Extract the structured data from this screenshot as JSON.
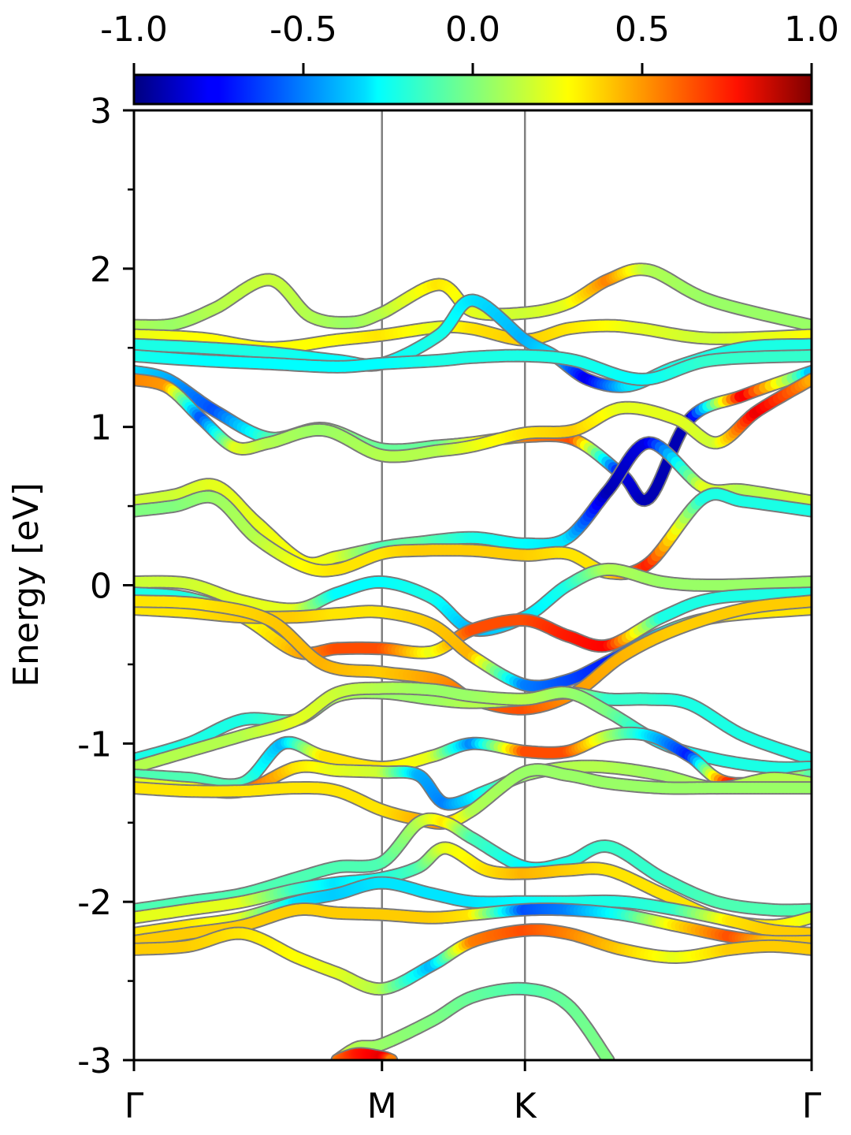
{
  "chart_data": {
    "type": "line",
    "xlabel": "",
    "ylabel": "Energy [eV]",
    "ylim": [
      -3,
      3
    ],
    "yticks": [
      {
        "value": 3,
        "label": "3"
      },
      {
        "value": 2,
        "label": "2"
      },
      {
        "value": 1,
        "label": "1"
      },
      {
        "value": 0,
        "label": "0"
      },
      {
        "value": -1,
        "label": "-1"
      },
      {
        "value": -2,
        "label": "-2"
      },
      {
        "value": -3,
        "label": "-3"
      }
    ],
    "yminor": [
      2.5,
      1.5,
      0.5,
      -0.5,
      -1.5,
      -2.5
    ],
    "xlim": [
      0,
      1
    ],
    "kpoints": [
      {
        "label": "Γ",
        "x": 0.0
      },
      {
        "label": "M",
        "x": 0.366
      },
      {
        "label": "K",
        "x": 0.577
      },
      {
        "label": "Γ",
        "x": 1.0
      }
    ],
    "colorbar": {
      "colormap": "jet",
      "range": [
        -1.0,
        1.0
      ],
      "ticks": [
        "-1.0",
        "-0.5",
        "0.0",
        "0.5",
        "1.0"
      ],
      "orientation": "horizontal",
      "position": "top"
    },
    "series": [
      {
        "x": [
          0,
          0.06,
          0.12,
          0.2,
          0.26,
          0.32,
          0.366,
          0.45,
          0.5,
          0.577,
          0.64,
          0.7,
          0.76,
          0.85,
          1.0
        ],
        "y": [
          1.64,
          1.65,
          1.75,
          1.93,
          1.7,
          1.66,
          1.72,
          1.9,
          1.73,
          1.72,
          1.78,
          1.93,
          1.99,
          1.8,
          1.64
        ],
        "s": [
          0.1,
          0.05,
          0.1,
          0.15,
          0.1,
          0.05,
          0.1,
          0.3,
          0.2,
          0.15,
          0.2,
          0.5,
          0.1,
          0.05,
          0.05
        ]
      },
      {
        "x": [
          0,
          0.1,
          0.2,
          0.3,
          0.366,
          0.45,
          0.5,
          0.577,
          0.64,
          0.7,
          0.75,
          0.85,
          1.0
        ],
        "y": [
          1.58,
          1.56,
          1.5,
          1.55,
          1.58,
          1.63,
          1.62,
          1.55,
          1.62,
          1.64,
          1.62,
          1.56,
          1.58
        ],
        "s": [
          0.2,
          0.25,
          0.25,
          0.25,
          0.3,
          0.2,
          0.3,
          0.35,
          0.3,
          0.25,
          0.2,
          0.15,
          0.25
        ]
      },
      {
        "x": [
          0,
          0.1,
          0.2,
          0.3,
          0.366,
          0.45,
          0.5,
          0.577,
          0.62,
          0.67,
          0.73,
          0.8,
          0.9,
          1.0
        ],
        "y": [
          1.52,
          1.5,
          1.47,
          1.42,
          1.4,
          1.58,
          1.8,
          1.55,
          1.45,
          1.3,
          1.26,
          1.38,
          1.5,
          1.52
        ],
        "s": [
          -0.2,
          -0.2,
          -0.2,
          -0.25,
          -0.25,
          -0.2,
          -0.3,
          -0.4,
          -0.3,
          -0.8,
          -0.3,
          -0.2,
          -0.2,
          -0.2
        ]
      },
      {
        "x": [
          0,
          0.1,
          0.2,
          0.3,
          0.366,
          0.45,
          0.5,
          0.577,
          0.65,
          0.75,
          0.85,
          1.0
        ],
        "y": [
          1.45,
          1.42,
          1.4,
          1.38,
          1.4,
          1.42,
          1.44,
          1.45,
          1.42,
          1.3,
          1.42,
          1.45
        ],
        "s": [
          -0.2,
          -0.25,
          -0.25,
          -0.25,
          -0.25,
          -0.2,
          -0.2,
          -0.2,
          -0.2,
          -0.25,
          -0.15,
          -0.15
        ]
      },
      {
        "x": [
          0,
          0.05,
          0.12,
          0.2,
          0.28,
          0.366,
          0.45,
          0.5,
          0.577,
          0.65,
          0.72,
          0.76,
          0.82,
          0.9,
          1.0
        ],
        "y": [
          1.35,
          1.3,
          1.1,
          0.93,
          0.99,
          0.86,
          0.88,
          0.9,
          0.94,
          0.92,
          0.7,
          0.55,
          1.05,
          1.2,
          1.35
        ],
        "s": [
          -0.3,
          -0.4,
          -0.6,
          -0.1,
          0.05,
          -0.05,
          -0.05,
          0.2,
          0.5,
          0.6,
          -0.8,
          -0.9,
          -0.9,
          0.8,
          -0.4
        ]
      },
      {
        "x": [
          0,
          0.05,
          0.1,
          0.15,
          0.2,
          0.28,
          0.366,
          0.45,
          0.5,
          0.577,
          0.65,
          0.72,
          0.8,
          0.86,
          0.92,
          1.0
        ],
        "y": [
          1.3,
          1.25,
          1.05,
          0.87,
          0.9,
          0.98,
          0.82,
          0.85,
          0.88,
          0.96,
          0.98,
          1.12,
          1.05,
          0.9,
          1.1,
          1.3
        ],
        "s": [
          0.5,
          0.45,
          -0.6,
          0.2,
          0.1,
          0.05,
          0.1,
          0.1,
          0.2,
          0.3,
          0.35,
          0.2,
          0.2,
          0.15,
          0.8,
          0.4
        ]
      },
      {
        "x": [
          0,
          0.06,
          0.12,
          0.18,
          0.25,
          0.3,
          0.366,
          0.42,
          0.5,
          0.577,
          0.64,
          0.7,
          0.76,
          0.84,
          0.9,
          1.0
        ],
        "y": [
          0.53,
          0.57,
          0.63,
          0.4,
          0.15,
          0.18,
          0.24,
          0.27,
          0.3,
          0.26,
          0.3,
          0.6,
          0.9,
          0.62,
          0.6,
          0.53
        ],
        "s": [
          0.15,
          0.15,
          0.2,
          0.2,
          0.25,
          0.2,
          -0.1,
          -0.05,
          -0.2,
          -0.25,
          -0.3,
          -0.9,
          -0.8,
          0.2,
          0.1,
          0.15
        ]
      },
      {
        "x": [
          0,
          0.06,
          0.12,
          0.18,
          0.25,
          0.3,
          0.366,
          0.42,
          0.5,
          0.577,
          0.64,
          0.7,
          0.76,
          0.84,
          0.9,
          1.0
        ],
        "y": [
          0.47,
          0.5,
          0.55,
          0.3,
          0.12,
          0.1,
          0.2,
          0.22,
          0.22,
          0.19,
          0.2,
          0.08,
          0.14,
          0.55,
          0.53,
          0.47
        ],
        "s": [
          0.0,
          0.0,
          0.05,
          0.1,
          0.25,
          0.3,
          0.3,
          0.35,
          0.35,
          0.35,
          0.3,
          0.3,
          0.7,
          -0.2,
          -0.2,
          -0.2
        ]
      },
      {
        "x": [
          0,
          0.08,
          0.16,
          0.24,
          0.3,
          0.366,
          0.44,
          0.5,
          0.577,
          0.64,
          0.7,
          0.78,
          0.86,
          1.0
        ],
        "y": [
          0.02,
          0.01,
          -0.1,
          -0.15,
          -0.05,
          0.02,
          -0.08,
          -0.28,
          -0.2,
          0.0,
          0.1,
          0.02,
          0.0,
          0.02
        ],
        "s": [
          0.15,
          0.15,
          0.2,
          0.2,
          -0.25,
          -0.25,
          -0.2,
          -0.4,
          -0.3,
          -0.2,
          0.1,
          0.05,
          0.05,
          0.05
        ]
      },
      {
        "x": [
          0,
          0.08,
          0.16,
          0.24,
          0.3,
          0.366,
          0.44,
          0.5,
          0.577,
          0.64,
          0.7,
          0.78,
          0.86,
          1.0
        ],
        "y": [
          -0.05,
          -0.08,
          -0.2,
          -0.42,
          -0.4,
          -0.4,
          -0.42,
          -0.28,
          -0.22,
          -0.32,
          -0.38,
          -0.2,
          -0.08,
          -0.05
        ],
        "s": [
          -0.2,
          -0.2,
          0.2,
          0.4,
          0.6,
          0.6,
          0.2,
          0.6,
          0.6,
          0.7,
          0.75,
          -0.2,
          -0.2,
          -0.2
        ]
      },
      {
        "x": [
          0,
          0.08,
          0.16,
          0.24,
          0.3,
          0.366,
          0.44,
          0.5,
          0.577,
          0.64,
          0.7,
          0.78,
          0.86,
          1.0
        ],
        "y": [
          -0.15,
          -0.17,
          -0.2,
          -0.2,
          -0.18,
          -0.17,
          -0.25,
          -0.45,
          -0.63,
          -0.6,
          -0.48,
          -0.3,
          -0.2,
          -0.15
        ],
        "s": [
          0.3,
          0.3,
          0.35,
          0.35,
          0.3,
          0.3,
          0.35,
          0.4,
          -0.5,
          -0.6,
          -0.7,
          -0.3,
          0.3,
          0.3
        ]
      },
      {
        "x": [
          0,
          0.1,
          0.2,
          0.28,
          0.366,
          0.45,
          0.5,
          0.577,
          0.65,
          0.72,
          0.8,
          0.9,
          1.0
        ],
        "y": [
          -0.1,
          -0.12,
          -0.22,
          -0.5,
          -0.55,
          -0.6,
          -0.72,
          -0.78,
          -0.68,
          -0.45,
          -0.28,
          -0.15,
          -0.1
        ],
        "s": [
          0.3,
          0.3,
          0.35,
          0.4,
          0.35,
          0.45,
          0.55,
          0.6,
          0.45,
          0.4,
          0.35,
          0.35,
          0.35
        ]
      },
      {
        "x": [
          0,
          0.08,
          0.16,
          0.24,
          0.3,
          0.366,
          0.44,
          0.5,
          0.577,
          0.64,
          0.7,
          0.76,
          0.82,
          0.9,
          1.0
        ],
        "y": [
          -1.1,
          -1.0,
          -0.85,
          -0.85,
          -0.7,
          -0.68,
          -0.72,
          -0.74,
          -0.72,
          -0.68,
          -0.72,
          -0.72,
          -0.75,
          -0.95,
          -1.1
        ],
        "s": [
          -0.2,
          -0.2,
          -0.2,
          -0.1,
          0.1,
          0.05,
          0.05,
          0.1,
          0.1,
          0.1,
          -0.15,
          -0.15,
          -0.2,
          -0.2,
          -0.2
        ]
      },
      {
        "x": [
          0,
          0.08,
          0.16,
          0.24,
          0.3,
          0.366,
          0.44,
          0.5,
          0.577,
          0.64,
          0.7,
          0.78,
          0.86,
          0.94,
          1.0
        ],
        "y": [
          -1.15,
          -1.05,
          -0.95,
          -0.85,
          -0.68,
          -0.65,
          -0.66,
          -0.7,
          -0.72,
          -0.68,
          -0.8,
          -1.0,
          -1.1,
          -1.15,
          -1.15
        ],
        "s": [
          0.1,
          0.1,
          0.1,
          0.2,
          0.15,
          0.1,
          0.05,
          0.05,
          0.1,
          0.05,
          0.0,
          -0.3,
          -0.2,
          -0.2,
          -0.2
        ]
      },
      {
        "x": [
          0,
          0.08,
          0.16,
          0.22,
          0.28,
          0.366,
          0.44,
          0.5,
          0.577,
          0.64,
          0.7,
          0.76,
          0.82,
          0.88,
          1.0
        ],
        "y": [
          -1.2,
          -1.22,
          -1.25,
          -1.0,
          -1.08,
          -1.15,
          -1.08,
          -1.0,
          -1.05,
          -1.05,
          -0.95,
          -0.95,
          -1.08,
          -1.25,
          -1.2
        ],
        "s": [
          -0.1,
          -0.1,
          -0.1,
          -0.4,
          0.3,
          0.3,
          0.2,
          -0.5,
          0.6,
          0.6,
          0.1,
          -0.3,
          -0.7,
          0.7,
          -0.1
        ]
      },
      {
        "x": [
          0,
          0.08,
          0.16,
          0.24,
          0.3,
          0.366,
          0.42,
          0.46,
          0.52,
          0.577,
          0.64,
          0.7,
          0.78,
          0.86,
          0.94,
          1.0
        ],
        "y": [
          -1.25,
          -1.28,
          -1.3,
          -1.15,
          -1.17,
          -1.18,
          -1.2,
          -1.38,
          -1.3,
          -1.2,
          -1.15,
          -1.15,
          -1.2,
          -1.28,
          -1.22,
          -1.25
        ],
        "s": [
          0.2,
          0.2,
          0.6,
          0.3,
          0.2,
          0.15,
          -0.4,
          -0.5,
          -0.2,
          0.05,
          0.1,
          0.1,
          0.05,
          0.1,
          0.1,
          0.1
        ]
      },
      {
        "x": [
          0,
          0.08,
          0.16,
          0.24,
          0.3,
          0.366,
          0.42,
          0.46,
          0.5,
          0.577,
          0.64,
          0.7,
          0.78,
          0.86,
          0.94,
          1.0
        ],
        "y": [
          -1.28,
          -1.3,
          -1.3,
          -1.28,
          -1.3,
          -1.42,
          -1.48,
          -1.5,
          -1.42,
          -1.18,
          -1.2,
          -1.25,
          -1.28,
          -1.28,
          -1.28,
          -1.28
        ],
        "s": [
          0.3,
          0.3,
          0.3,
          0.3,
          0.3,
          0.3,
          0.4,
          0.5,
          0.1,
          0.05,
          0.05,
          0.05,
          0.05,
          0.05,
          0.05,
          0.05
        ]
      },
      {
        "x": [
          0,
          0.08,
          0.16,
          0.24,
          0.3,
          0.366,
          0.42,
          0.46,
          0.5,
          0.577,
          0.64,
          0.7,
          0.78,
          0.86,
          0.94,
          1.0
        ],
        "y": [
          -2.05,
          -2.0,
          -1.95,
          -1.85,
          -1.78,
          -1.75,
          -1.5,
          -1.5,
          -1.6,
          -1.78,
          -1.75,
          -1.65,
          -1.85,
          -2.0,
          -2.05,
          -2.05
        ],
        "s": [
          -0.1,
          -0.1,
          -0.1,
          -0.1,
          -0.1,
          -0.1,
          0.1,
          0.3,
          -0.1,
          -0.25,
          -0.2,
          -0.15,
          -0.15,
          -0.1,
          -0.1,
          -0.1
        ]
      },
      {
        "x": [
          0,
          0.08,
          0.16,
          0.24,
          0.3,
          0.366,
          0.42,
          0.46,
          0.52,
          0.577,
          0.64,
          0.7,
          0.78,
          0.86,
          0.94,
          1.0
        ],
        "y": [
          -2.1,
          -2.05,
          -2.0,
          -1.92,
          -1.88,
          -1.85,
          -1.78,
          -1.66,
          -1.8,
          -1.82,
          -1.8,
          -1.8,
          -1.95,
          -2.1,
          -2.15,
          -2.1
        ],
        "s": [
          0.2,
          0.2,
          0.2,
          -0.15,
          -0.3,
          -0.2,
          -0.1,
          0.2,
          0.3,
          0.4,
          0.35,
          0.3,
          0.3,
          0.3,
          0.3,
          0.2
        ]
      },
      {
        "x": [
          0,
          0.08,
          0.16,
          0.24,
          0.3,
          0.366,
          0.44,
          0.5,
          0.577,
          0.64,
          0.72,
          0.8,
          0.88,
          0.94,
          1.0
        ],
        "y": [
          -2.2,
          -2.15,
          -2.1,
          -2.0,
          -1.95,
          -1.88,
          -1.95,
          -2.0,
          -2.0,
          -2.0,
          -2.0,
          -2.05,
          -2.12,
          -2.18,
          -2.2
        ],
        "s": [
          0.3,
          0.3,
          0.2,
          -0.3,
          -0.35,
          -0.3,
          -0.3,
          -0.3,
          -0.25,
          -0.2,
          -0.2,
          -0.15,
          0.3,
          0.35,
          0.35
        ]
      },
      {
        "x": [
          0,
          0.08,
          0.16,
          0.24,
          0.3,
          0.366,
          0.44,
          0.5,
          0.577,
          0.64,
          0.72,
          0.8,
          0.88,
          0.94,
          1.0
        ],
        "y": [
          -2.25,
          -2.2,
          -2.15,
          -2.05,
          -2.07,
          -2.08,
          -2.1,
          -2.08,
          -2.05,
          -2.05,
          -2.08,
          -2.15,
          -2.22,
          -2.25,
          -2.25
        ],
        "s": [
          0.35,
          0.35,
          0.35,
          0.35,
          0.35,
          0.35,
          0.35,
          0.3,
          -0.6,
          -0.5,
          -0.2,
          0.3,
          0.6,
          0.35,
          0.35
        ]
      },
      {
        "x": [
          0,
          0.08,
          0.16,
          0.24,
          0.3,
          0.366,
          0.44,
          0.5,
          0.577,
          0.64,
          0.72,
          0.8,
          0.88,
          0.94,
          1.0
        ],
        "y": [
          -2.3,
          -2.28,
          -2.2,
          -2.35,
          -2.45,
          -2.55,
          -2.4,
          -2.25,
          -2.18,
          -2.2,
          -2.3,
          -2.35,
          -2.3,
          -2.28,
          -2.3
        ],
        "s": [
          0.35,
          0.35,
          0.3,
          0.25,
          0.2,
          0.1,
          -0.4,
          0.5,
          0.6,
          0.5,
          0.35,
          0.2,
          0.35,
          0.35,
          0.35
        ]
      },
      {
        "x": [
          0.3,
          0.33,
          0.366,
          0.44,
          0.5,
          0.577,
          0.64,
          0.7
        ],
        "y": [
          -3.0,
          -2.92,
          -2.9,
          -2.75,
          -2.6,
          -2.55,
          -2.65,
          -3.0
        ],
        "s": [
          0.2,
          0.1,
          0.05,
          0.0,
          -0.05,
          -0.1,
          -0.05,
          0.0
        ]
      },
      {
        "x": [
          0.3,
          0.33,
          0.366,
          0.38
        ],
        "y": [
          -3.0,
          -2.96,
          -2.98,
          -3.0
        ],
        "s": [
          0.5,
          0.7,
          0.8,
          0.5
        ]
      }
    ]
  }
}
